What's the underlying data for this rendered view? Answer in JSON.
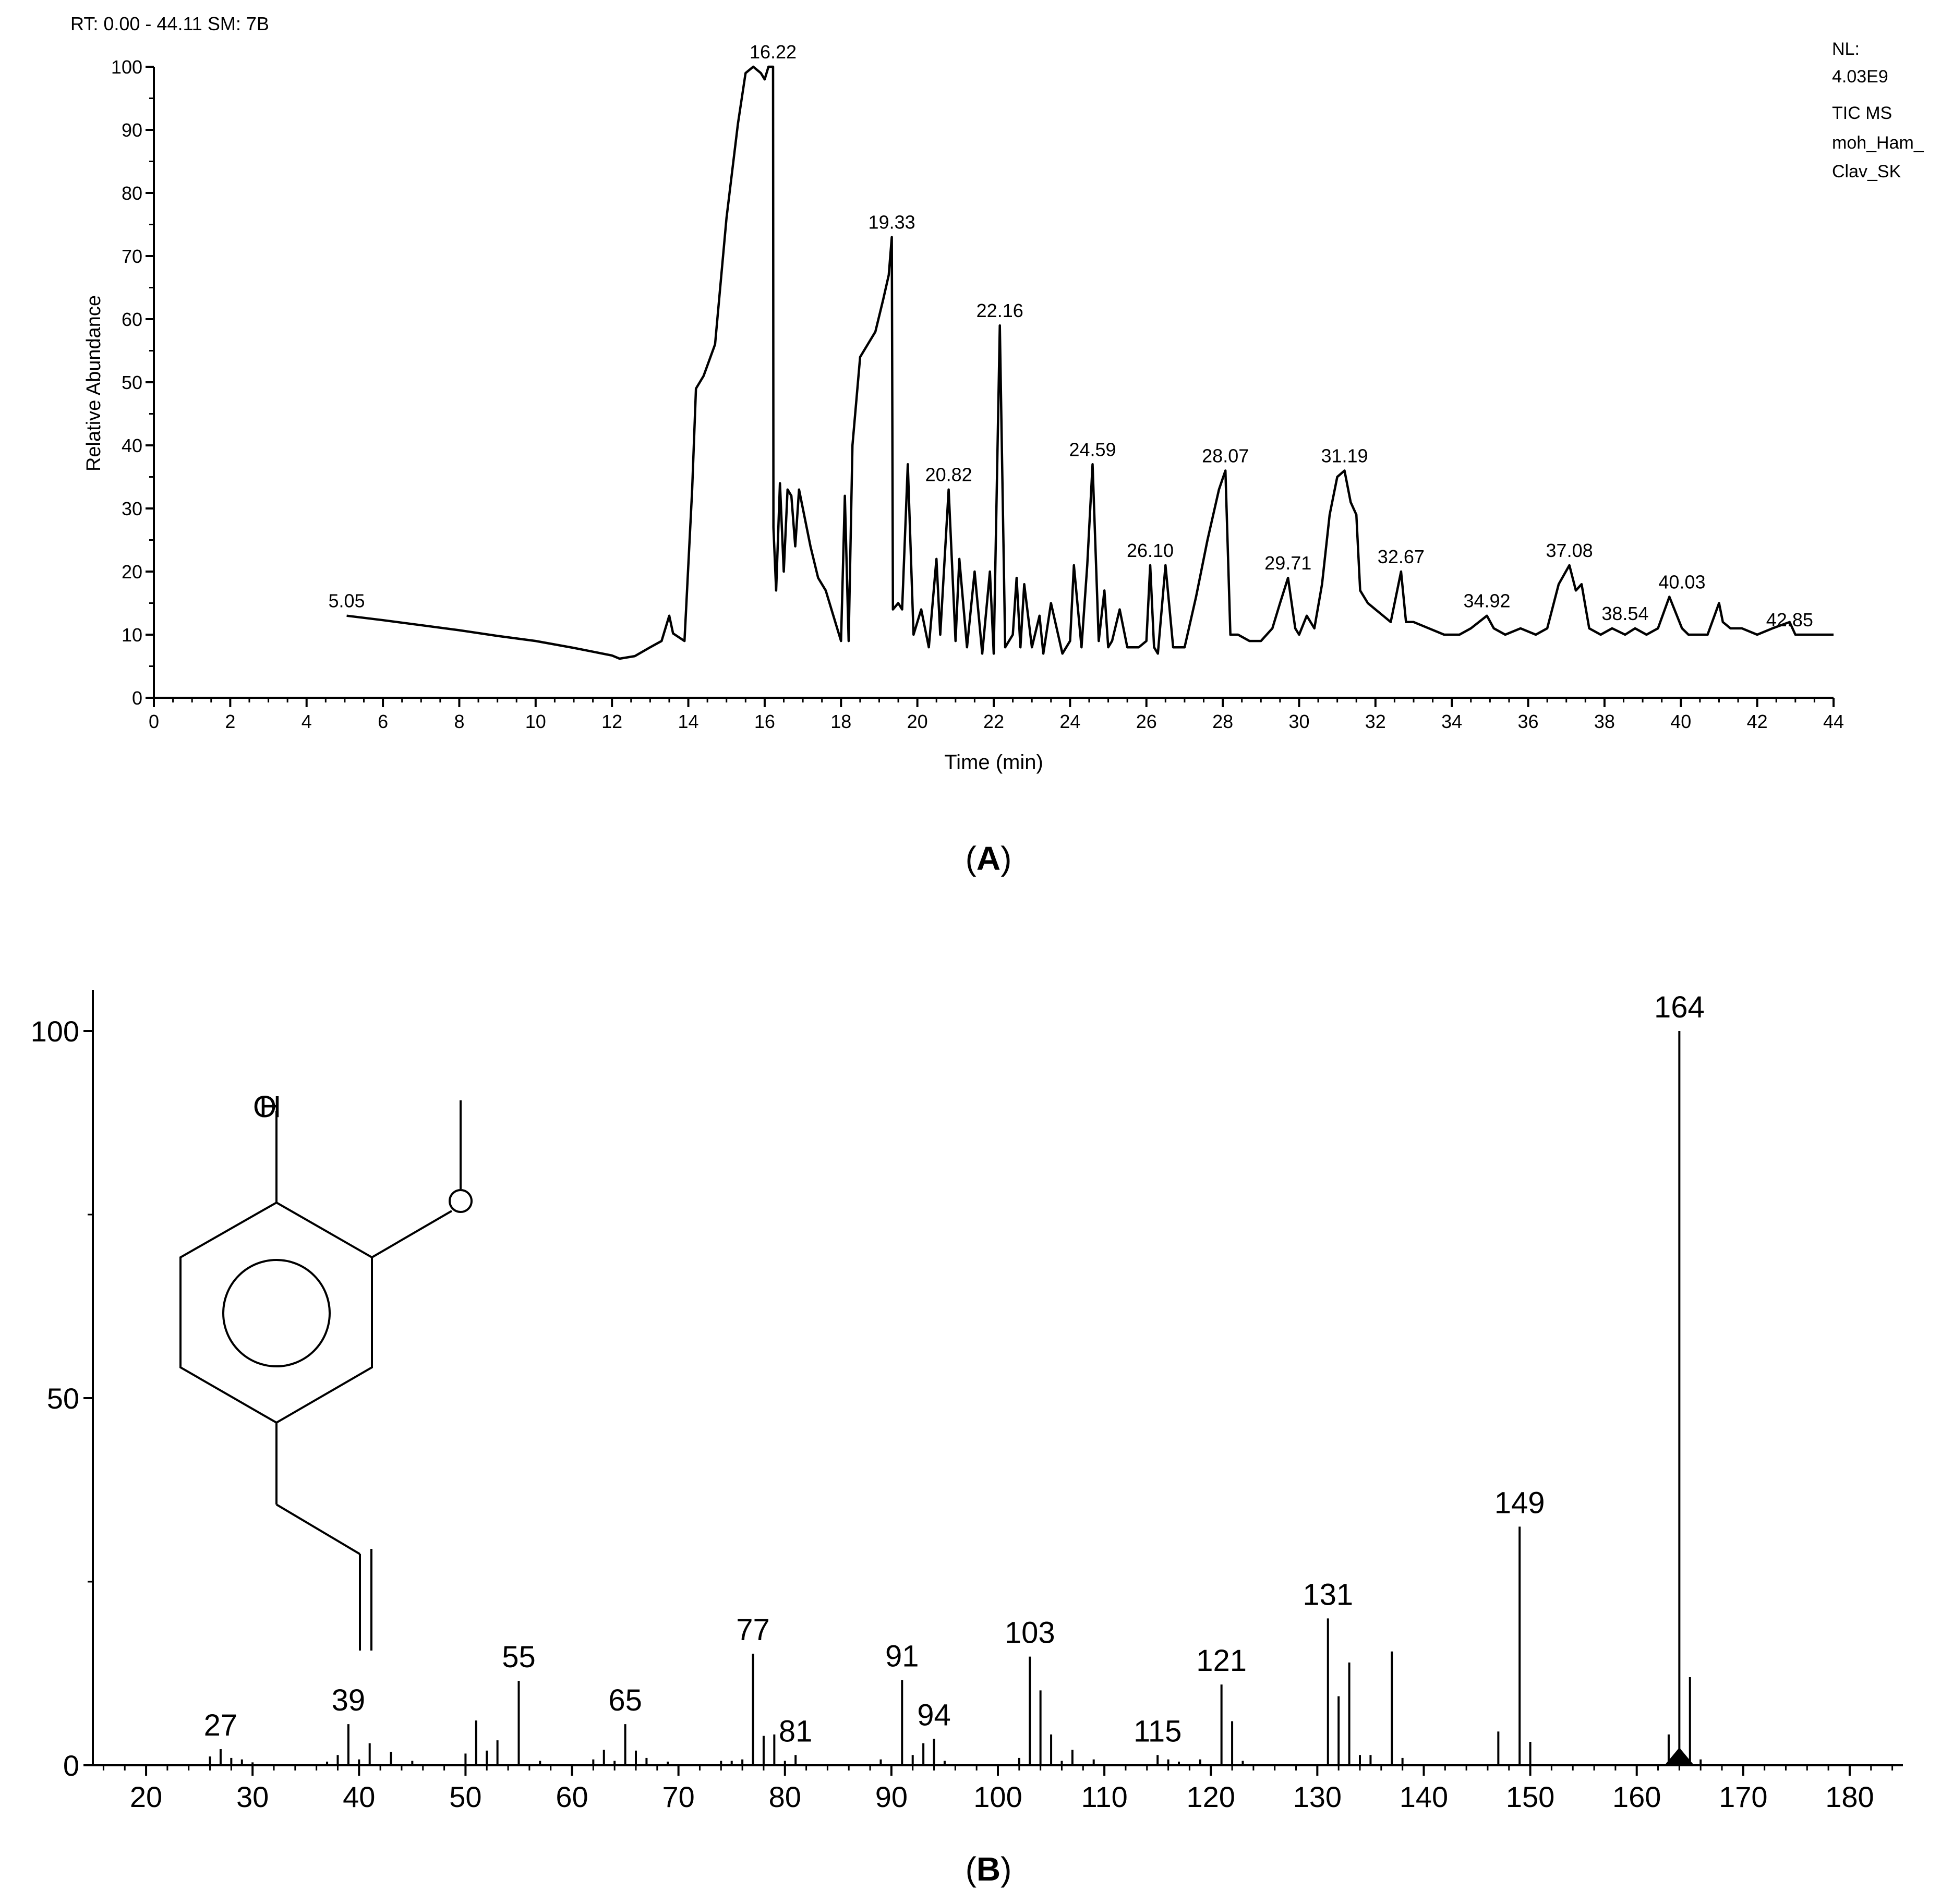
{
  "panel_a": {
    "header": "RT: 0.00 - 44.11   SM: 7B",
    "info_lines": [
      "NL:",
      "4.03E9",
      "TIC MS",
      "moh_Ham_",
      "Clav_SK"
    ],
    "caption_open": "(",
    "caption_letter": "A",
    "caption_close": ")"
  },
  "panel_b": {
    "caption_open": "(",
    "caption_letter": "B",
    "caption_close": ")",
    "structure_labels": [
      "H",
      "O",
      "O"
    ]
  },
  "chart_data": [
    {
      "type": "line",
      "title": "",
      "xlabel": "Time (min)",
      "ylabel": "Relative Abundance",
      "xlim": [
        0,
        44
      ],
      "ylim": [
        0,
        100
      ],
      "xticks": [
        0,
        2,
        4,
        6,
        8,
        10,
        12,
        14,
        16,
        18,
        20,
        22,
        24,
        26,
        28,
        30,
        32,
        34,
        36,
        38,
        40,
        42,
        44
      ],
      "yticks": [
        0,
        10,
        20,
        30,
        40,
        50,
        60,
        70,
        80,
        90,
        100
      ],
      "series": [
        {
          "x": [
            5.05,
            6,
            7,
            8,
            9,
            10,
            11,
            12,
            12.2,
            12.6,
            13,
            13.3,
            13.5,
            13.6,
            13.9,
            14.1,
            14.2,
            14.4,
            14.7,
            15,
            15.3,
            15.5,
            15.7,
            15.9,
            16,
            16.1,
            16.22,
            16.23,
            16.3,
            16.4,
            16.5,
            16.6,
            16.7,
            16.8,
            16.9,
            17.0,
            17.2,
            17.4,
            17.6,
            17.8,
            18.0,
            18.1,
            18.2,
            18.3,
            18.5,
            18.7,
            18.9,
            19.1,
            19.25,
            19.33,
            19.36,
            19.5,
            19.6,
            19.75,
            19.9,
            20.1,
            20.3,
            20.5,
            20.6,
            20.82,
            21.0,
            21.1,
            21.3,
            21.5,
            21.7,
            21.9,
            22.0,
            22.16,
            22.3,
            22.5,
            22.6,
            22.7,
            22.8,
            23.0,
            23.2,
            23.3,
            23.5,
            23.8,
            24.0,
            24.1,
            24.3,
            24.45,
            24.59,
            24.75,
            24.9,
            25.0,
            25.1,
            25.3,
            25.5,
            25.8,
            26.0,
            26.1,
            26.2,
            26.3,
            26.5,
            26.7,
            27.0,
            27.3,
            27.6,
            27.9,
            28.07,
            28.2,
            28.4,
            28.7,
            29.0,
            29.3,
            29.5,
            29.71,
            29.9,
            30.0,
            30.2,
            30.4,
            30.6,
            30.8,
            31.0,
            31.19,
            31.35,
            31.5,
            31.6,
            31.8,
            32.0,
            32.2,
            32.4,
            32.67,
            32.8,
            33.0,
            33.4,
            33.8,
            34.2,
            34.5,
            34.92,
            35.1,
            35.4,
            35.8,
            36.2,
            36.5,
            36.8,
            37.08,
            37.25,
            37.4,
            37.6,
            37.9,
            38.2,
            38.54,
            38.8,
            39.1,
            39.4,
            39.7,
            40.03,
            40.2,
            40.4,
            40.7,
            41.0,
            41.1,
            41.3,
            41.6,
            42.0,
            42.4,
            42.85,
            43.0,
            43.3,
            43.6,
            44.0
          ],
          "y": [
            13,
            12.3,
            11.5,
            10.7,
            9.8,
            9,
            7.9,
            6.7,
            6.2,
            6.6,
            8,
            9,
            13,
            10.2,
            9,
            33,
            49,
            51,
            56,
            76,
            91,
            99,
            100,
            99,
            98,
            100,
            100,
            27,
            17,
            34,
            20,
            33,
            32,
            24,
            33,
            30,
            24,
            19,
            17,
            13,
            9,
            32,
            9,
            40,
            54,
            56,
            58,
            63,
            67,
            73,
            14,
            15,
            14,
            37,
            10,
            14,
            8,
            22,
            10,
            33,
            9,
            22,
            8,
            20,
            7,
            20,
            7,
            59,
            8,
            10,
            19,
            8,
            18,
            8,
            13,
            7,
            15,
            7,
            9,
            21,
            8,
            21,
            37,
            9,
            17,
            8,
            9,
            14,
            8,
            8,
            9,
            21,
            8,
            7,
            21,
            8,
            8,
            16,
            25,
            33,
            36,
            10,
            10,
            9,
            9,
            11,
            15,
            19,
            11,
            10,
            13,
            11,
            18,
            29,
            35,
            36,
            31,
            29,
            17,
            15,
            14,
            13,
            12,
            20,
            12,
            12,
            11,
            10,
            10,
            11,
            13,
            11,
            10,
            11,
            10,
            11,
            18,
            21,
            17,
            18,
            11,
            10,
            11,
            10,
            11,
            10,
            11,
            16,
            11,
            10,
            10,
            10,
            15,
            12,
            11,
            11,
            10,
            11,
            12,
            10,
            10,
            10,
            10
          ]
        }
      ],
      "peak_labels": [
        {
          "x": 5.05,
          "y": 13,
          "text": "5.05"
        },
        {
          "x": 16.22,
          "y": 100,
          "text": "16.22"
        },
        {
          "x": 19.33,
          "y": 73,
          "text": "19.33"
        },
        {
          "x": 20.82,
          "y": 33,
          "text": "20.82"
        },
        {
          "x": 22.16,
          "y": 59,
          "text": "22.16"
        },
        {
          "x": 24.59,
          "y": 37,
          "text": "24.59"
        },
        {
          "x": 26.1,
          "y": 21,
          "text": "26.10"
        },
        {
          "x": 28.07,
          "y": 36,
          "text": "28.07"
        },
        {
          "x": 29.71,
          "y": 19,
          "text": "29.71"
        },
        {
          "x": 31.19,
          "y": 36,
          "text": "31.19"
        },
        {
          "x": 32.67,
          "y": 20,
          "text": "32.67"
        },
        {
          "x": 34.92,
          "y": 13,
          "text": "34.92"
        },
        {
          "x": 37.08,
          "y": 21,
          "text": "37.08"
        },
        {
          "x": 38.54,
          "y": 11,
          "text": "38.54"
        },
        {
          "x": 40.03,
          "y": 16,
          "text": "40.03"
        },
        {
          "x": 42.85,
          "y": 10,
          "text": "42.85"
        }
      ]
    },
    {
      "type": "bar",
      "title": "",
      "xlabel": "",
      "ylabel": "",
      "xlim": [
        15,
        185
      ],
      "ylim": [
        0,
        105
      ],
      "xticks": [
        20,
        30,
        40,
        50,
        60,
        70,
        80,
        90,
        100,
        110,
        120,
        130,
        140,
        150,
        160,
        170,
        180
      ],
      "yticks": [
        0,
        50,
        100
      ],
      "peaks": [
        {
          "mz": 26,
          "i": 1.2
        },
        {
          "mz": 27,
          "i": 2.2
        },
        {
          "mz": 28,
          "i": 1.0
        },
        {
          "mz": 29,
          "i": 0.8
        },
        {
          "mz": 30,
          "i": 0.4
        },
        {
          "mz": 37,
          "i": 0.5
        },
        {
          "mz": 38,
          "i": 1.4
        },
        {
          "mz": 39,
          "i": 5.6
        },
        {
          "mz": 40,
          "i": 0.8
        },
        {
          "mz": 41,
          "i": 3.0
        },
        {
          "mz": 43,
          "i": 1.8
        },
        {
          "mz": 45,
          "i": 0.6
        },
        {
          "mz": 50,
          "i": 1.6
        },
        {
          "mz": 51,
          "i": 6.1
        },
        {
          "mz": 52,
          "i": 2.0
        },
        {
          "mz": 53,
          "i": 3.4
        },
        {
          "mz": 55,
          "i": 11.5
        },
        {
          "mz": 57,
          "i": 0.6
        },
        {
          "mz": 62,
          "i": 0.8
        },
        {
          "mz": 63,
          "i": 2.1
        },
        {
          "mz": 64,
          "i": 0.6
        },
        {
          "mz": 65,
          "i": 5.6
        },
        {
          "mz": 66,
          "i": 2.0
        },
        {
          "mz": 67,
          "i": 1.0
        },
        {
          "mz": 69,
          "i": 0.5
        },
        {
          "mz": 74,
          "i": 0.6
        },
        {
          "mz": 75,
          "i": 0.6
        },
        {
          "mz": 76,
          "i": 0.8
        },
        {
          "mz": 77,
          "i": 15.2
        },
        {
          "mz": 78,
          "i": 4.0
        },
        {
          "mz": 79,
          "i": 4.2
        },
        {
          "mz": 80,
          "i": 0.6
        },
        {
          "mz": 81,
          "i": 1.4
        },
        {
          "mz": 89,
          "i": 0.8
        },
        {
          "mz": 91,
          "i": 11.6
        },
        {
          "mz": 92,
          "i": 1.4
        },
        {
          "mz": 93,
          "i": 3.0
        },
        {
          "mz": 94,
          "i": 3.6
        },
        {
          "mz": 95,
          "i": 0.6
        },
        {
          "mz": 102,
          "i": 1.0
        },
        {
          "mz": 103,
          "i": 14.8
        },
        {
          "mz": 104,
          "i": 10.2
        },
        {
          "mz": 105,
          "i": 4.2
        },
        {
          "mz": 106,
          "i": 0.6
        },
        {
          "mz": 107,
          "i": 2.1
        },
        {
          "mz": 109,
          "i": 0.8
        },
        {
          "mz": 115,
          "i": 1.4
        },
        {
          "mz": 116,
          "i": 0.8
        },
        {
          "mz": 117,
          "i": 0.5
        },
        {
          "mz": 119,
          "i": 0.8
        },
        {
          "mz": 121,
          "i": 11.0
        },
        {
          "mz": 122,
          "i": 6.0
        },
        {
          "mz": 123,
          "i": 0.6
        },
        {
          "mz": 131,
          "i": 20.0
        },
        {
          "mz": 132,
          "i": 9.4
        },
        {
          "mz": 133,
          "i": 14.0
        },
        {
          "mz": 134,
          "i": 1.4
        },
        {
          "mz": 135,
          "i": 1.4
        },
        {
          "mz": 137,
          "i": 15.5
        },
        {
          "mz": 138,
          "i": 1.0
        },
        {
          "mz": 147,
          "i": 4.6
        },
        {
          "mz": 149,
          "i": 32.5
        },
        {
          "mz": 150,
          "i": 3.2
        },
        {
          "mz": 163,
          "i": 4.2
        },
        {
          "mz": 164,
          "i": 100
        },
        {
          "mz": 165,
          "i": 12.0
        },
        {
          "mz": 166,
          "i": 0.8
        }
      ],
      "peak_labels": [
        {
          "mz": 27,
          "i": 2.2,
          "text": "27"
        },
        {
          "mz": 39,
          "i": 5.6,
          "text": "39"
        },
        {
          "mz": 55,
          "i": 11.5,
          "text": "55"
        },
        {
          "mz": 65,
          "i": 5.6,
          "text": "65"
        },
        {
          "mz": 77,
          "i": 15.2,
          "text": "77"
        },
        {
          "mz": 81,
          "i": 1.4,
          "text": "81"
        },
        {
          "mz": 91,
          "i": 11.6,
          "text": "91"
        },
        {
          "mz": 94,
          "i": 3.6,
          "text": "94"
        },
        {
          "mz": 103,
          "i": 14.8,
          "text": "103"
        },
        {
          "mz": 115,
          "i": 1.4,
          "text": "115"
        },
        {
          "mz": 121,
          "i": 11.0,
          "text": "121"
        },
        {
          "mz": 131,
          "i": 20.0,
          "text": "131"
        },
        {
          "mz": 149,
          "i": 32.5,
          "text": "149"
        },
        {
          "mz": 164,
          "i": 100,
          "text": "164"
        }
      ],
      "precursor_marker_mz": 164
    }
  ]
}
